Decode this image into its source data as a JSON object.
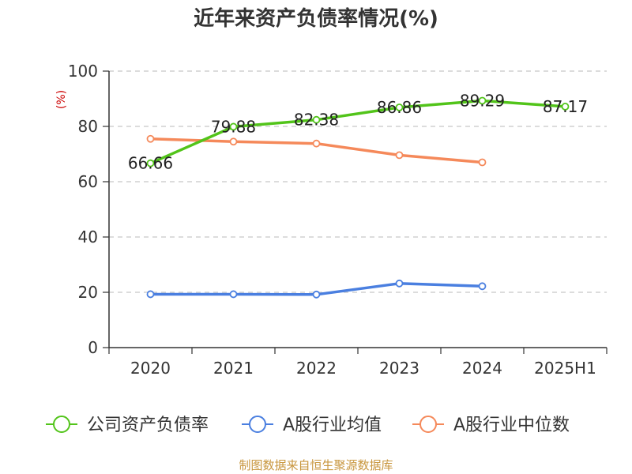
{
  "chart_data": {
    "type": "line",
    "title": "近年来资产负债率情况(%)",
    "ylabel": "(%)",
    "categories": [
      "2020",
      "2021",
      "2022",
      "2023",
      "2024",
      "2025H1"
    ],
    "y_ticks": [
      "0",
      "20",
      "40",
      "60",
      "80",
      "100"
    ],
    "ylim": [
      0,
      100
    ],
    "grid": true,
    "legend_position": "bottom",
    "series": [
      {
        "name": "公司资产负债率",
        "color": "#52c41a",
        "values": [
          66.66,
          79.88,
          82.38,
          86.86,
          89.29,
          87.17
        ],
        "labels": [
          "66.66",
          "79.88",
          "82.38",
          "86.86",
          "89.29",
          "87.17"
        ]
      },
      {
        "name": "A股行业均值",
        "color": "#4a7fe0",
        "values": [
          19.3,
          19.3,
          19.2,
          23.2,
          22.2,
          null
        ]
      },
      {
        "name": "A股行业中位数",
        "color": "#f5895a",
        "values": [
          75.5,
          74.5,
          73.8,
          69.6,
          67.0,
          null
        ]
      }
    ]
  },
  "footer": "制图数据来自恒生聚源数据库"
}
